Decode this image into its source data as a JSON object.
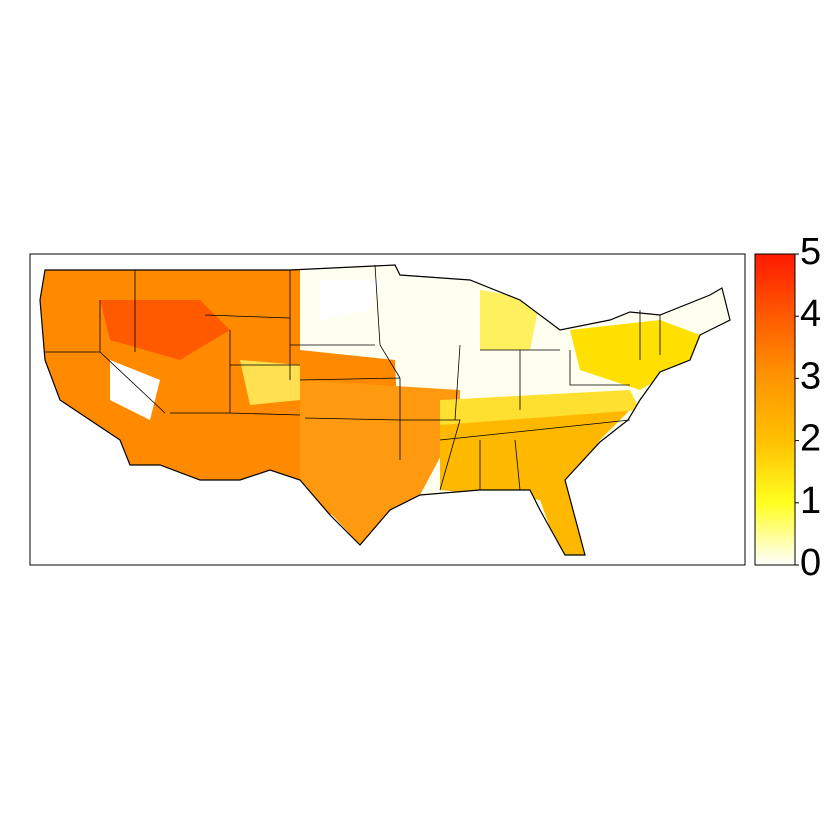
{
  "colorbar": {
    "range": [
      0,
      5
    ],
    "ticks": [
      0,
      1,
      2,
      3,
      4,
      5
    ]
  }
}
